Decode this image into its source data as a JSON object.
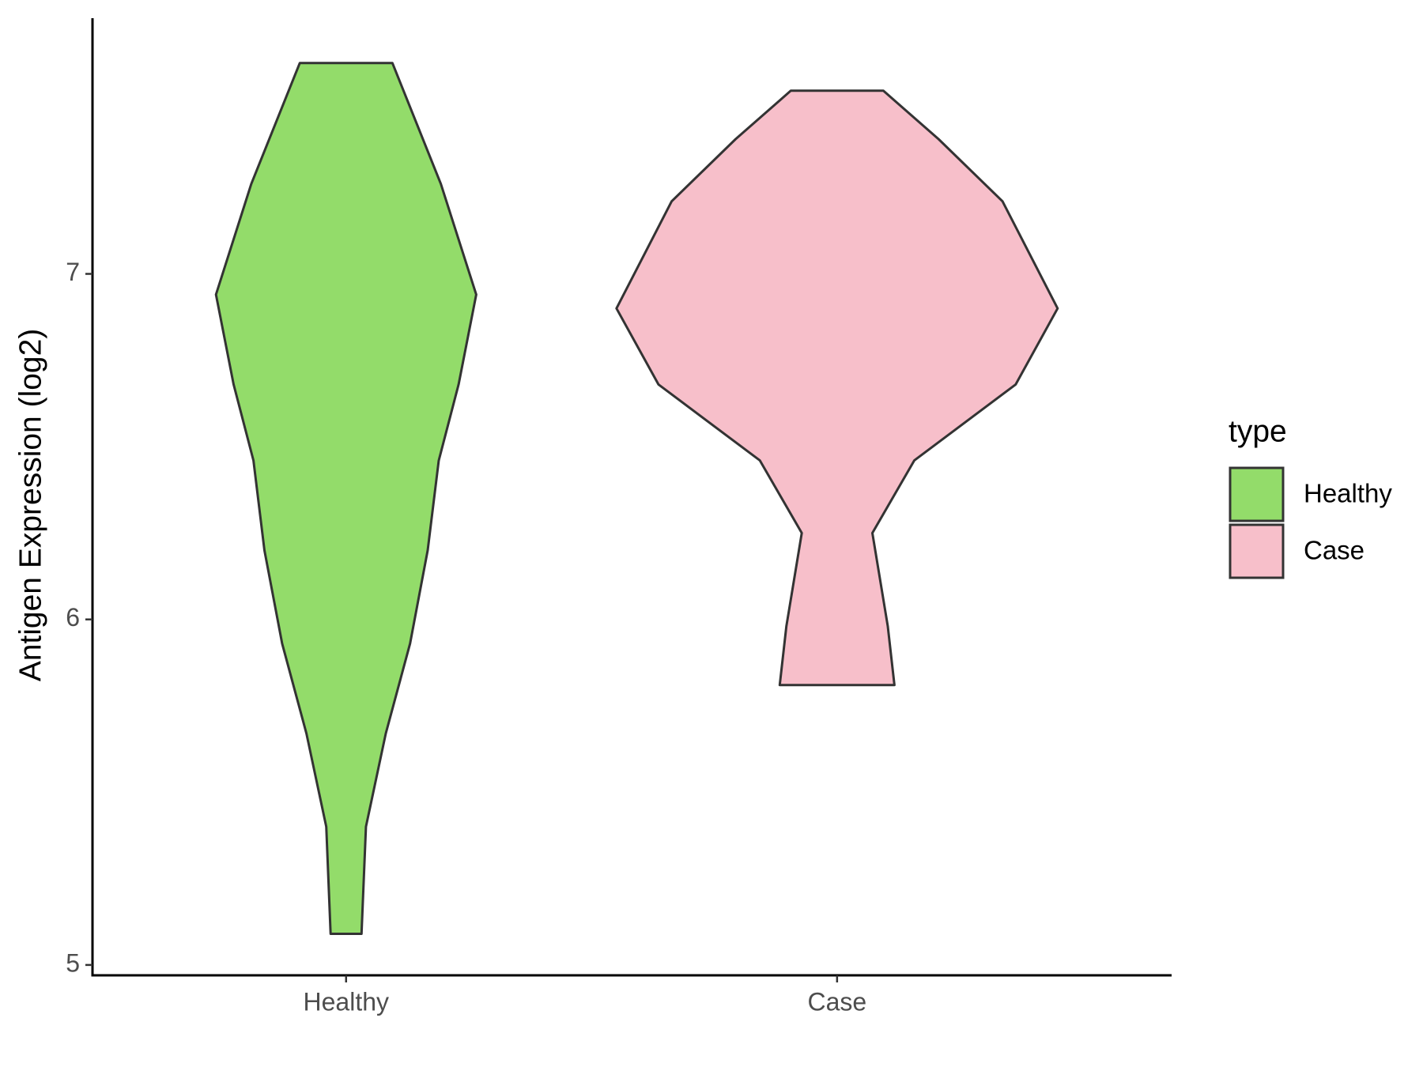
{
  "chart_data": {
    "type": "violin",
    "y_label": "Antigen Expression (log2)",
    "categories": [
      "Healthy",
      "Case"
    ],
    "series": [
      {
        "name": "Healthy",
        "color": "#93dc6a",
        "values": [
          7.61,
          7.26,
          6.94,
          6.68,
          6.46,
          6.2,
          5.93,
          5.67,
          5.4,
          5.09
        ],
        "density": [
          0.21,
          0.43,
          0.59,
          0.51,
          0.42,
          0.37,
          0.29,
          0.18,
          0.09,
          0.07
        ]
      },
      {
        "name": "Case",
        "color": "#f7bfca",
        "values": [
          7.53,
          7.39,
          7.21,
          6.9,
          6.68,
          6.46,
          6.25,
          5.98,
          5.81
        ],
        "density": [
          0.21,
          0.46,
          0.75,
          1,
          0.81,
          0.35,
          0.16,
          0.23,
          0.26
        ]
      }
    ],
    "ylim": [
      4.97,
      7.74
    ],
    "yticks": [
      5,
      6,
      7
    ],
    "legend_title": "type",
    "legend": "right"
  }
}
